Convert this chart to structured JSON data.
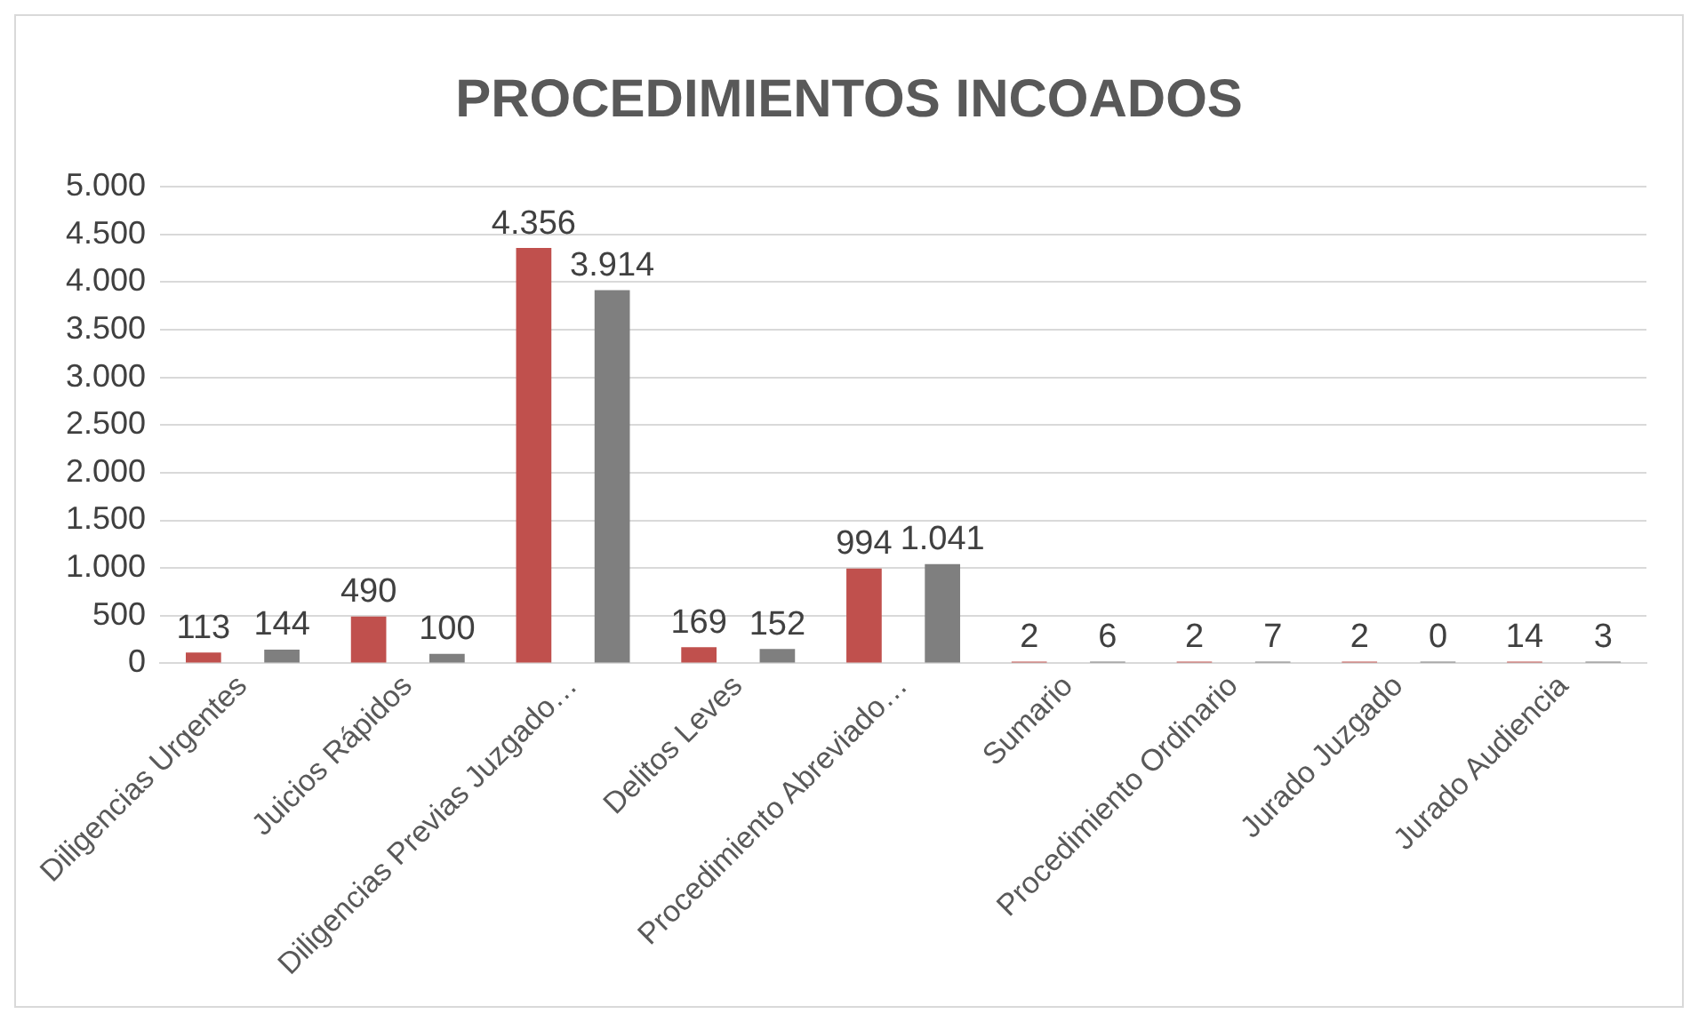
{
  "chart_data": {
    "type": "bar",
    "title": "PROCEDIMIENTOS INCOADOS",
    "categories": [
      "Diligencias Urgentes",
      "Juicios Rápidos",
      "Diligencias Previas Juzgado…",
      "Delitos Leves",
      "Procedimiento Abreviado…",
      "Sumario",
      "Procedimiento Ordinario",
      "Jurado Juzgado",
      "Jurado Audiencia"
    ],
    "series": [
      {
        "color": "#c0504d",
        "values": [
          113,
          490,
          4356,
          169,
          994,
          2,
          2,
          2,
          14
        ],
        "value_labels": [
          "113",
          "490",
          "4.356",
          "169",
          "994",
          "2",
          "2",
          "2",
          "14"
        ]
      },
      {
        "color": "#7f7f7f",
        "values": [
          144,
          100,
          3914,
          152,
          1041,
          6,
          7,
          0,
          3
        ],
        "value_labels": [
          "144",
          "100",
          "3.914",
          "152",
          "1.041",
          "6",
          "7",
          "0",
          "3"
        ]
      }
    ],
    "ylim": [
      0,
      5000
    ],
    "yticks": [
      0,
      {
        "value": 500,
        "label": "500"
      },
      {
        "value": 1000,
        "label": "1.000"
      },
      {
        "value": 1500,
        "label": "1.500"
      },
      {
        "value": 2000,
        "label": "2.000"
      },
      {
        "value": 2500,
        "label": "2.500"
      },
      {
        "value": 3000,
        "label": "3.000"
      },
      {
        "value": 3500,
        "label": "3.500"
      },
      {
        "value": 4000,
        "label": "4.000"
      },
      {
        "value": 4500,
        "label": "4.500"
      },
      {
        "value": 5000,
        "label": "5.000"
      }
    ],
    "grid": "y",
    "legend": false
  }
}
